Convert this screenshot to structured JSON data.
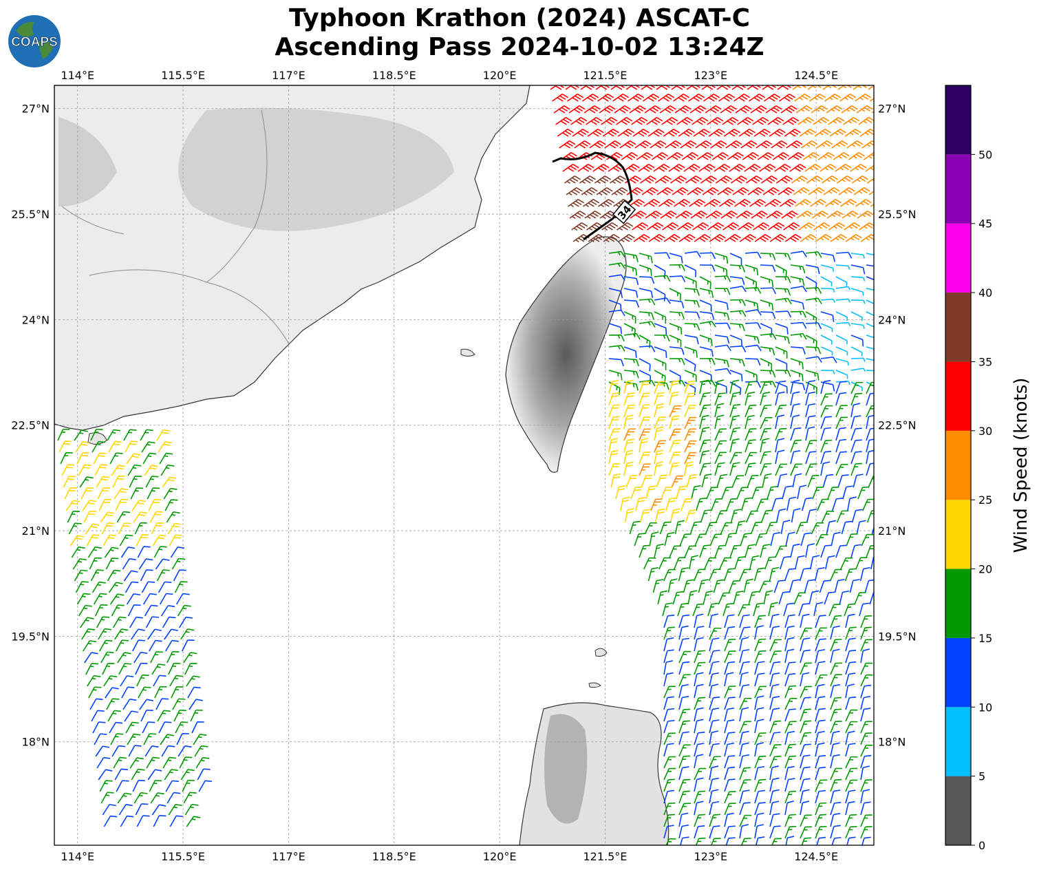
{
  "title": {
    "line1": "Typhoon Krathon (2024) ASCAT-C",
    "line2": "Ascending Pass 2024-10-02 13:24Z"
  },
  "logo": {
    "text": "COAPS",
    "ocean_color": "#1f6fb5",
    "land_color": "#4a8a3a"
  },
  "map": {
    "lon_ticks": [
      "114°E",
      "115.5°E",
      "117°E",
      "118.5°E",
      "120°E",
      "121.5°E",
      "123°E",
      "124.5°E"
    ],
    "lat_ticks": [
      "27°N",
      "25.5°N",
      "24°N",
      "22.5°N",
      "21°N",
      "19.5°N",
      "18°N"
    ],
    "lon_values": [
      114,
      115.5,
      117,
      118.5,
      120,
      121.5,
      123,
      124.5
    ],
    "lat_values": [
      27,
      25.5,
      24,
      22.5,
      21,
      19.5,
      18
    ],
    "extent": {
      "lon_min": 113.67,
      "lon_max": 125.32,
      "lat_min": 16.53,
      "lat_max": 27.33
    },
    "grid": true,
    "wind_radius_label": "34",
    "land_color": "#e6e6e6",
    "terrain_color": "#9a9a9a"
  },
  "colorbar": {
    "label": "Wind Speed (knots)",
    "ticks": [
      "0",
      "5",
      "10",
      "15",
      "20",
      "25",
      "30",
      "35",
      "40",
      "45",
      "50"
    ],
    "bins": [
      {
        "from": 0,
        "to": 5,
        "color": "#575757"
      },
      {
        "from": 5,
        "to": 10,
        "color": "#00bfff"
      },
      {
        "from": 10,
        "to": 15,
        "color": "#0040ff"
      },
      {
        "from": 15,
        "to": 20,
        "color": "#009900"
      },
      {
        "from": 20,
        "to": 25,
        "color": "#ffd700"
      },
      {
        "from": 25,
        "to": 30,
        "color": "#ff8c00"
      },
      {
        "from": 30,
        "to": 35,
        "color": "#ff0000"
      },
      {
        "from": 35,
        "to": 40,
        "color": "#803a28"
      },
      {
        "from": 40,
        "to": 45,
        "color": "#ff00ee"
      },
      {
        "from": 45,
        "to": 50,
        "color": "#8b00b3"
      },
      {
        "from": 50,
        "to": 55,
        "color": "#2b0060"
      }
    ]
  }
}
